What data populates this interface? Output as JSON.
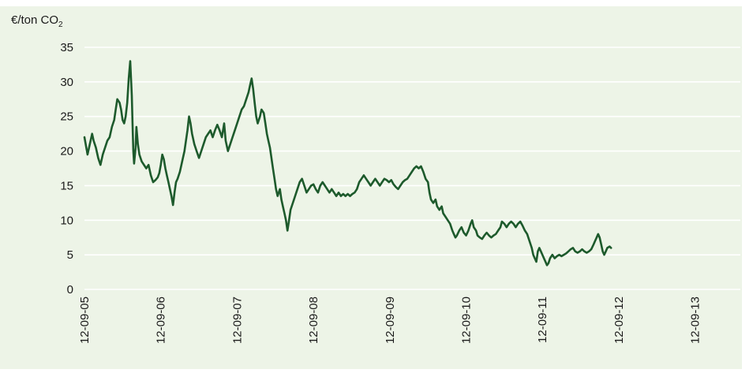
{
  "chart_data": {
    "type": "line",
    "title": "",
    "ylabel_main": "€/ton CO",
    "ylabel_sub": "2",
    "xlabel": "",
    "ylim": [
      0,
      35
    ],
    "y_ticks": [
      0,
      5,
      10,
      15,
      20,
      25,
      30,
      35
    ],
    "x_ticks": [
      "12-09-05",
      "12-09-06",
      "12-09-07",
      "12-09-08",
      "12-09-09",
      "12-09-10",
      "12-09-11",
      "12-09-12",
      "12-09-13"
    ],
    "grid": "horizontal",
    "background_color": "#edf4e7",
    "line_color": "#1d5a2c",
    "series": [
      {
        "values": [
          [
            0.0,
            22.0
          ],
          [
            0.04,
            19.5
          ],
          [
            0.07,
            21.0
          ],
          [
            0.1,
            22.5
          ],
          [
            0.12,
            21.5
          ],
          [
            0.15,
            20.5
          ],
          [
            0.18,
            19.0
          ],
          [
            0.21,
            18.0
          ],
          [
            0.24,
            19.5
          ],
          [
            0.27,
            20.5
          ],
          [
            0.3,
            21.5
          ],
          [
            0.33,
            22.0
          ],
          [
            0.36,
            23.5
          ],
          [
            0.39,
            24.5
          ],
          [
            0.41,
            26.0
          ],
          [
            0.43,
            27.5
          ],
          [
            0.46,
            27.0
          ],
          [
            0.48,
            26.0
          ],
          [
            0.5,
            24.5
          ],
          [
            0.52,
            24.0
          ],
          [
            0.54,
            25.0
          ],
          [
            0.56,
            27.0
          ],
          [
            0.58,
            30.5
          ],
          [
            0.6,
            33.0
          ],
          [
            0.62,
            28.0
          ],
          [
            0.63,
            24.0
          ],
          [
            0.64,
            20.0
          ],
          [
            0.65,
            18.2
          ],
          [
            0.67,
            20.5
          ],
          [
            0.68,
            23.5
          ],
          [
            0.7,
            21.0
          ],
          [
            0.72,
            19.5
          ],
          [
            0.75,
            18.5
          ],
          [
            0.78,
            18.0
          ],
          [
            0.81,
            17.5
          ],
          [
            0.84,
            18.0
          ],
          [
            0.87,
            16.5
          ],
          [
            0.9,
            15.5
          ],
          [
            0.93,
            15.8
          ],
          [
            0.96,
            16.2
          ],
          [
            0.98,
            16.8
          ],
          [
            1.0,
            18.0
          ],
          [
            1.02,
            19.5
          ],
          [
            1.04,
            18.8
          ],
          [
            1.06,
            17.5
          ],
          [
            1.08,
            16.5
          ],
          [
            1.1,
            15.5
          ],
          [
            1.12,
            14.5
          ],
          [
            1.14,
            13.5
          ],
          [
            1.16,
            12.2
          ],
          [
            1.18,
            14.0
          ],
          [
            1.2,
            15.5
          ],
          [
            1.22,
            16.0
          ],
          [
            1.25,
            17.0
          ],
          [
            1.28,
            18.5
          ],
          [
            1.31,
            20.0
          ],
          [
            1.33,
            21.5
          ],
          [
            1.35,
            23.0
          ],
          [
            1.37,
            25.0
          ],
          [
            1.39,
            24.0
          ],
          [
            1.41,
            22.5
          ],
          [
            1.44,
            21.0
          ],
          [
            1.47,
            20.0
          ],
          [
            1.5,
            19.0
          ],
          [
            1.53,
            20.0
          ],
          [
            1.56,
            21.0
          ],
          [
            1.59,
            22.0
          ],
          [
            1.62,
            22.5
          ],
          [
            1.65,
            23.0
          ],
          [
            1.68,
            22.0
          ],
          [
            1.71,
            23.0
          ],
          [
            1.74,
            23.8
          ],
          [
            1.77,
            23.0
          ],
          [
            1.8,
            22.0
          ],
          [
            1.83,
            24.0
          ],
          [
            1.85,
            21.5
          ],
          [
            1.88,
            20.0
          ],
          [
            1.91,
            21.0
          ],
          [
            1.94,
            22.0
          ],
          [
            1.97,
            23.0
          ],
          [
            2.0,
            24.0
          ],
          [
            2.03,
            25.0
          ],
          [
            2.06,
            26.0
          ],
          [
            2.09,
            26.5
          ],
          [
            2.12,
            27.5
          ],
          [
            2.15,
            28.5
          ],
          [
            2.17,
            29.5
          ],
          [
            2.19,
            30.5
          ],
          [
            2.21,
            29.0
          ],
          [
            2.23,
            27.0
          ],
          [
            2.25,
            25.0
          ],
          [
            2.27,
            24.0
          ],
          [
            2.3,
            25.0
          ],
          [
            2.32,
            26.0
          ],
          [
            2.35,
            25.5
          ],
          [
            2.37,
            24.0
          ],
          [
            2.39,
            22.5
          ],
          [
            2.41,
            21.5
          ],
          [
            2.43,
            20.5
          ],
          [
            2.45,
            19.0
          ],
          [
            2.47,
            17.5
          ],
          [
            2.49,
            16.0
          ],
          [
            2.51,
            14.5
          ],
          [
            2.53,
            13.5
          ],
          [
            2.56,
            14.5
          ],
          [
            2.58,
            13.0
          ],
          [
            2.6,
            12.0
          ],
          [
            2.62,
            11.0
          ],
          [
            2.64,
            10.0
          ],
          [
            2.66,
            8.5
          ],
          [
            2.68,
            10.0
          ],
          [
            2.7,
            11.5
          ],
          [
            2.73,
            12.5
          ],
          [
            2.76,
            13.5
          ],
          [
            2.79,
            14.5
          ],
          [
            2.82,
            15.5
          ],
          [
            2.85,
            16.0
          ],
          [
            2.88,
            15.0
          ],
          [
            2.91,
            14.0
          ],
          [
            2.94,
            14.5
          ],
          [
            2.97,
            15.0
          ],
          [
            3.0,
            15.2
          ],
          [
            3.03,
            14.5
          ],
          [
            3.06,
            14.0
          ],
          [
            3.09,
            15.0
          ],
          [
            3.12,
            15.5
          ],
          [
            3.15,
            15.0
          ],
          [
            3.18,
            14.5
          ],
          [
            3.21,
            14.0
          ],
          [
            3.24,
            14.5
          ],
          [
            3.27,
            14.0
          ],
          [
            3.3,
            13.5
          ],
          [
            3.33,
            14.0
          ],
          [
            3.36,
            13.5
          ],
          [
            3.39,
            13.8
          ],
          [
            3.42,
            13.5
          ],
          [
            3.45,
            13.8
          ],
          [
            3.48,
            13.5
          ],
          [
            3.51,
            13.8
          ],
          [
            3.54,
            14.0
          ],
          [
            3.57,
            14.5
          ],
          [
            3.6,
            15.5
          ],
          [
            3.63,
            16.0
          ],
          [
            3.66,
            16.5
          ],
          [
            3.69,
            16.0
          ],
          [
            3.72,
            15.5
          ],
          [
            3.75,
            15.0
          ],
          [
            3.78,
            15.5
          ],
          [
            3.81,
            16.0
          ],
          [
            3.84,
            15.5
          ],
          [
            3.87,
            15.0
          ],
          [
            3.9,
            15.5
          ],
          [
            3.93,
            16.0
          ],
          [
            3.96,
            15.8
          ],
          [
            3.99,
            15.5
          ],
          [
            4.02,
            15.8
          ],
          [
            4.05,
            15.2
          ],
          [
            4.08,
            14.8
          ],
          [
            4.11,
            14.5
          ],
          [
            4.14,
            15.0
          ],
          [
            4.17,
            15.5
          ],
          [
            4.2,
            15.8
          ],
          [
            4.23,
            16.0
          ],
          [
            4.26,
            16.5
          ],
          [
            4.29,
            17.0
          ],
          [
            4.32,
            17.5
          ],
          [
            4.35,
            17.8
          ],
          [
            4.38,
            17.5
          ],
          [
            4.41,
            17.8
          ],
          [
            4.44,
            17.0
          ],
          [
            4.47,
            16.0
          ],
          [
            4.5,
            15.5
          ],
          [
            4.52,
            14.0
          ],
          [
            4.54,
            13.0
          ],
          [
            4.57,
            12.5
          ],
          [
            4.6,
            13.0
          ],
          [
            4.62,
            12.0
          ],
          [
            4.65,
            11.5
          ],
          [
            4.68,
            12.0
          ],
          [
            4.7,
            11.0
          ],
          [
            4.73,
            10.5
          ],
          [
            4.76,
            10.0
          ],
          [
            4.79,
            9.5
          ],
          [
            4.82,
            8.5
          ],
          [
            4.84,
            8.0
          ],
          [
            4.86,
            7.5
          ],
          [
            4.88,
            7.8
          ],
          [
            4.91,
            8.5
          ],
          [
            4.94,
            9.0
          ],
          [
            4.97,
            8.2
          ],
          [
            5.0,
            7.8
          ],
          [
            5.03,
            8.5
          ],
          [
            5.06,
            9.5
          ],
          [
            5.08,
            10.0
          ],
          [
            5.1,
            9.0
          ],
          [
            5.13,
            8.5
          ],
          [
            5.15,
            7.8
          ],
          [
            5.18,
            7.5
          ],
          [
            5.21,
            7.3
          ],
          [
            5.24,
            7.8
          ],
          [
            5.27,
            8.2
          ],
          [
            5.3,
            7.8
          ],
          [
            5.33,
            7.5
          ],
          [
            5.36,
            7.8
          ],
          [
            5.39,
            8.0
          ],
          [
            5.42,
            8.5
          ],
          [
            5.45,
            9.0
          ],
          [
            5.47,
            9.8
          ],
          [
            5.5,
            9.5
          ],
          [
            5.53,
            9.0
          ],
          [
            5.56,
            9.5
          ],
          [
            5.59,
            9.8
          ],
          [
            5.62,
            9.5
          ],
          [
            5.65,
            9.0
          ],
          [
            5.68,
            9.5
          ],
          [
            5.71,
            9.8
          ],
          [
            5.74,
            9.2
          ],
          [
            5.77,
            8.5
          ],
          [
            5.8,
            8.0
          ],
          [
            5.83,
            7.0
          ],
          [
            5.86,
            6.0
          ],
          [
            5.88,
            5.0
          ],
          [
            5.9,
            4.5
          ],
          [
            5.92,
            4.0
          ],
          [
            5.94,
            5.5
          ],
          [
            5.96,
            6.0
          ],
          [
            5.98,
            5.5
          ],
          [
            6.0,
            5.0
          ],
          [
            6.02,
            4.5
          ],
          [
            6.04,
            4.0
          ],
          [
            6.06,
            3.5
          ],
          [
            6.08,
            3.8
          ],
          [
            6.1,
            4.5
          ],
          [
            6.13,
            5.0
          ],
          [
            6.16,
            4.5
          ],
          [
            6.19,
            4.8
          ],
          [
            6.22,
            5.0
          ],
          [
            6.25,
            4.8
          ],
          [
            6.28,
            5.0
          ],
          [
            6.31,
            5.2
          ],
          [
            6.34,
            5.5
          ],
          [
            6.37,
            5.8
          ],
          [
            6.4,
            6.0
          ],
          [
            6.43,
            5.5
          ],
          [
            6.46,
            5.3
          ],
          [
            6.49,
            5.5
          ],
          [
            6.52,
            5.8
          ],
          [
            6.55,
            5.5
          ],
          [
            6.58,
            5.3
          ],
          [
            6.61,
            5.5
          ],
          [
            6.64,
            5.8
          ],
          [
            6.67,
            6.5
          ],
          [
            6.69,
            7.0
          ],
          [
            6.71,
            7.5
          ],
          [
            6.73,
            8.0
          ],
          [
            6.75,
            7.5
          ],
          [
            6.77,
            6.5
          ],
          [
            6.79,
            5.5
          ],
          [
            6.81,
            5.0
          ],
          [
            6.83,
            5.5
          ],
          [
            6.85,
            6.0
          ],
          [
            6.88,
            6.2
          ],
          [
            6.9,
            6.0
          ]
        ]
      }
    ]
  }
}
